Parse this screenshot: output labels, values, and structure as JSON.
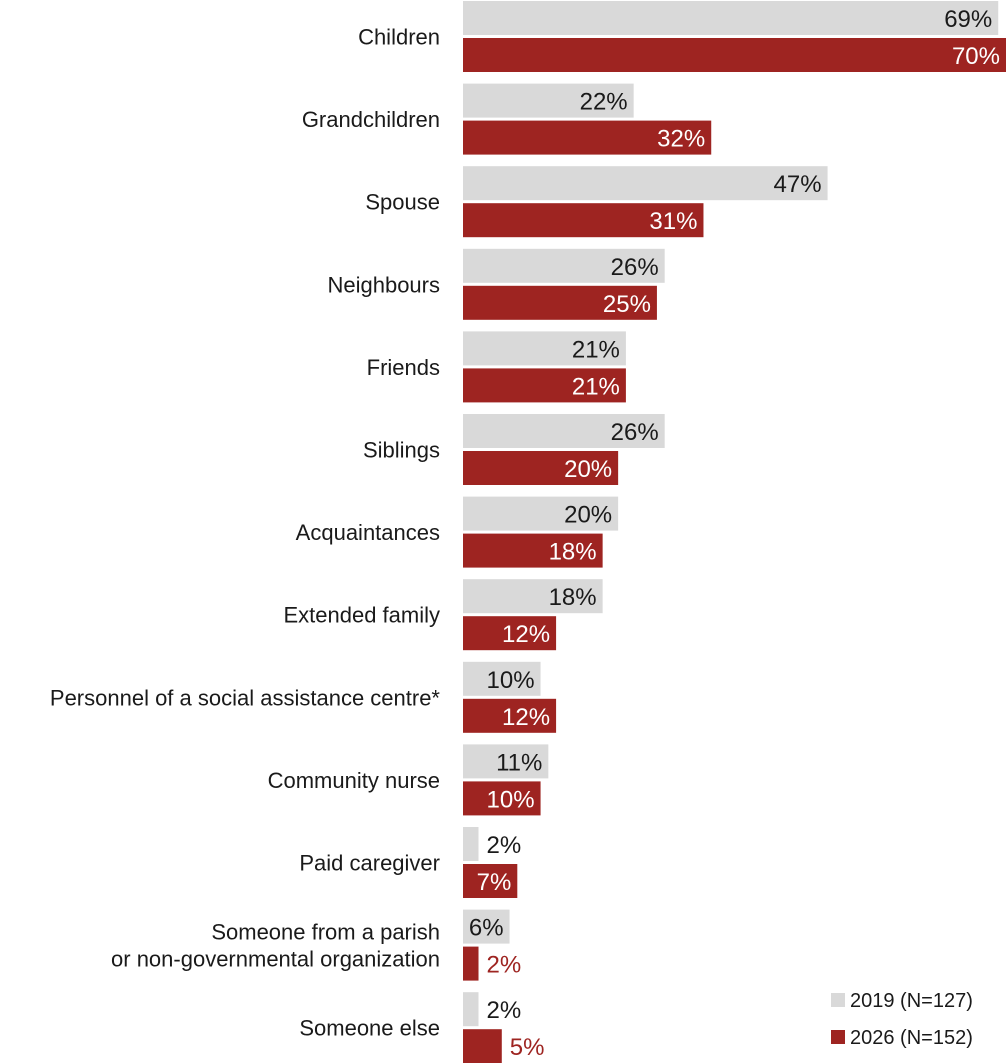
{
  "chart_data": {
    "type": "bar",
    "orientation": "horizontal",
    "categories": [
      [
        "Children"
      ],
      [
        "Grandchildren"
      ],
      [
        "Spouse"
      ],
      [
        "Neighbours"
      ],
      [
        "Friends"
      ],
      [
        "Siblings"
      ],
      [
        "Acquaintances"
      ],
      [
        "Extended family"
      ],
      [
        "Personnel of a social assistance centre*"
      ],
      [
        "Community nurse"
      ],
      [
        "Paid caregiver"
      ],
      [
        "Someone from a parish",
        "or non-governmental organization"
      ],
      [
        "Someone else"
      ]
    ],
    "series": [
      {
        "name": "2019 (N=127)",
        "color": "#d9d9d9",
        "values": [
          69,
          22,
          47,
          26,
          21,
          26,
          20,
          18,
          10,
          11,
          2,
          6,
          2
        ],
        "labels": [
          "69%",
          "22%",
          "47%",
          "26%",
          "21%",
          "26%",
          "20%",
          "18%",
          "10%",
          "11%",
          "2%",
          "6%",
          "2%"
        ]
      },
      {
        "name": "2026 (N=152)",
        "color": "#9e2421",
        "values": [
          70,
          32,
          31,
          25,
          21,
          20,
          18,
          12,
          12,
          10,
          7,
          2,
          5
        ],
        "labels": [
          "70%",
          "32%",
          "31%",
          "25%",
          "21%",
          "20%",
          "18%",
          "12%",
          "12%",
          "10%",
          "7%",
          "2%",
          "5%"
        ]
      }
    ],
    "xlim": [
      0,
      70
    ],
    "grid": false,
    "legend": "bottom-right"
  }
}
